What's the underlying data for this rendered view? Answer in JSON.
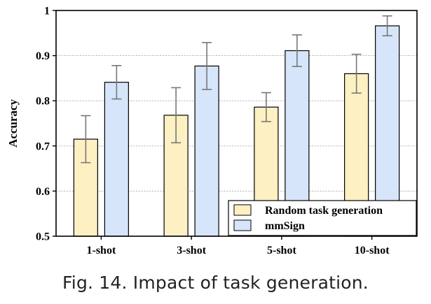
{
  "caption": "Fig. 14.  Impact of task generation.",
  "chart_data": {
    "type": "bar",
    "categories": [
      "1-shot",
      "3-shot",
      "5-shot",
      "10-shot"
    ],
    "series": [
      {
        "name": "Random task generation",
        "values": [
          0.715,
          0.768,
          0.786,
          0.86
        ],
        "error": [
          0.052,
          0.061,
          0.032,
          0.043
        ],
        "color": "#fdf0c2"
      },
      {
        "name": "mmSign",
        "values": [
          0.841,
          0.877,
          0.911,
          0.966
        ],
        "error": [
          0.037,
          0.052,
          0.035,
          0.022
        ],
        "color": "#d6e5fa"
      }
    ],
    "title": "",
    "xlabel": "",
    "ylabel": "Accuracy",
    "ylim": [
      0.5,
      1.0
    ],
    "yticks": [
      "0.5",
      "0.6",
      "0.7",
      "0.8",
      "0.9",
      "1"
    ],
    "grid": true,
    "legend_position": "bottom-right",
    "edge_color": "#000000",
    "error_color": "#777777",
    "grid_color": "#b0b0b0"
  }
}
